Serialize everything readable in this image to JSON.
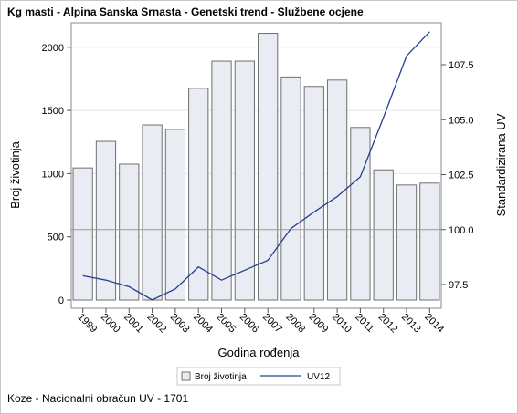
{
  "chart_data": {
    "type": "bar",
    "title": "Kg masti - Alpina Sanska Srnasta - Genetski trend - Službene ocjene",
    "xlabel": "Godina rođenja",
    "ylabel": "Broj životinja",
    "y2label": "Standardizirana UV",
    "categories": [
      "1999",
      "2000",
      "2001",
      "2002",
      "2003",
      "2004",
      "2005",
      "2006",
      "2007",
      "2008",
      "2009",
      "2010",
      "2011",
      "2012",
      "2013",
      "2014"
    ],
    "series": [
      {
        "name": "Broj životinja",
        "type": "bar",
        "axis": "left",
        "color": "#e9ecf2",
        "values": [
          1045,
          1255,
          1075,
          1385,
          1350,
          1675,
          1890,
          1890,
          2110,
          1765,
          1690,
          1740,
          1365,
          1030,
          910,
          925
        ]
      },
      {
        "name": "UV12",
        "type": "line",
        "axis": "right",
        "color": "#25408f",
        "values": [
          97.9,
          97.7,
          97.4,
          96.8,
          97.3,
          98.3,
          97.7,
          98.15,
          98.6,
          100.05,
          100.8,
          101.5,
          102.4,
          105.1,
          107.9,
          109.0
        ]
      }
    ],
    "ylim": [
      0,
      2150
    ],
    "yticks": [
      0,
      500,
      1000,
      1500,
      2000
    ],
    "y2lim": [
      96.7,
      109.35
    ],
    "y2ticks": [
      97.5,
      100.0,
      102.5,
      105.0,
      107.5
    ],
    "y2ticklabels": [
      "97.5",
      "100.0",
      "102.5",
      "105.0",
      "107.5"
    ],
    "reference_line_right": 100.0,
    "grid": true,
    "legend_position": "bottom"
  },
  "footnote": "Koze - Nacionalni obračun UV - 1701"
}
